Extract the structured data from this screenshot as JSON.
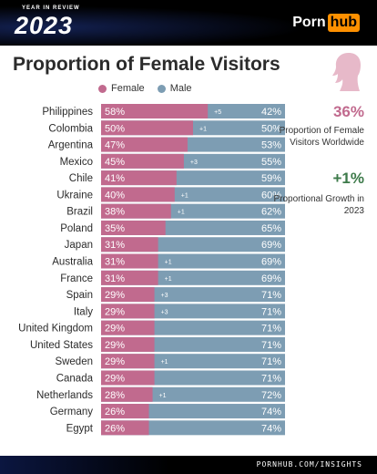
{
  "header": {
    "ribbon_text": "YEAR IN REVIEW",
    "year": "2023",
    "logo_part1": "Porn",
    "logo_part2": "hub"
  },
  "colors": {
    "female": "#c16a8e",
    "male": "#7d9db3",
    "label_text": "#2b2b2b",
    "growth_green": "#3d7a4a"
  },
  "side_panel": {
    "icon": "female-silhouette-icon",
    "female_pct": "36%",
    "female_pct_label": "Proportion of Female Visitors Worldwide",
    "growth": "+1%",
    "growth_label": "Proportional Growth in 2023"
  },
  "footer": {
    "url": "PORNHUB.COM/INSIGHTS"
  },
  "chart_data": {
    "type": "bar",
    "orientation": "horizontal-stacked-100",
    "title": "Proportion of Female Visitors",
    "legend": [
      "Female",
      "Male"
    ],
    "legend_position": "top",
    "categories": [
      "Philippines",
      "Colombia",
      "Argentina",
      "Mexico",
      "Chile",
      "Ukraine",
      "Brazil",
      "Poland",
      "Japan",
      "Australia",
      "France",
      "Spain",
      "Italy",
      "United Kingdom",
      "United States",
      "Sweden",
      "Canada",
      "Netherlands",
      "Germany",
      "Egypt"
    ],
    "series": [
      {
        "name": "Female",
        "values": [
          58,
          50,
          47,
          45,
          41,
          40,
          38,
          35,
          31,
          31,
          31,
          29,
          29,
          29,
          29,
          29,
          29,
          28,
          26,
          26
        ]
      },
      {
        "name": "Male",
        "values": [
          42,
          50,
          53,
          55,
          59,
          60,
          62,
          65,
          69,
          69,
          69,
          71,
          71,
          71,
          71,
          71,
          71,
          72,
          74,
          74
        ]
      }
    ],
    "female_labels": [
      "58%",
      "50%",
      "47%",
      "45%",
      "41%",
      "40%",
      "38%",
      "35%",
      "31%",
      "31%",
      "31%",
      "29%",
      "29%",
      "29%",
      "29%",
      "29%",
      "29%",
      "28%",
      "26%",
      "26%"
    ],
    "male_labels": [
      "42%",
      "50%",
      "53%",
      "55%",
      "59%",
      "60%",
      "62%",
      "65%",
      "69%",
      "69%",
      "69%",
      "71%",
      "71%",
      "71%",
      "71%",
      "71%",
      "71%",
      "72%",
      "74%",
      "74%"
    ],
    "growth_labels": [
      "+5",
      "+1",
      "",
      "+3",
      "",
      "+1",
      "+1",
      "",
      "",
      "+1",
      "+1",
      "+3",
      "+3",
      "",
      "",
      "+1",
      "",
      "+1",
      "",
      ""
    ],
    "xlim": [
      0,
      100
    ]
  }
}
